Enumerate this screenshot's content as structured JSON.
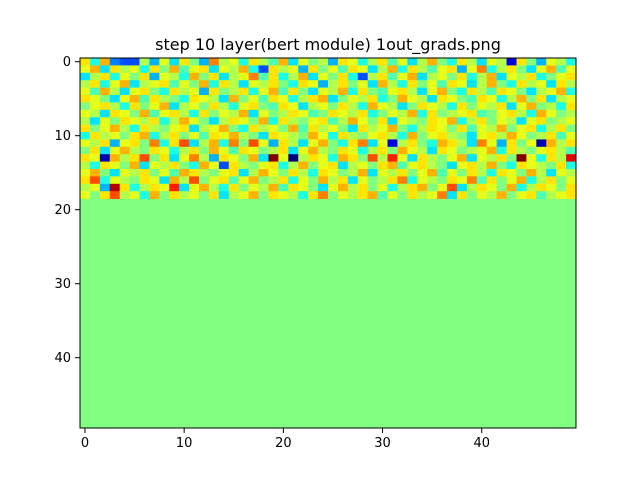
{
  "chart_data": {
    "type": "heatmap",
    "title": "step 10 layer(bert module) 1out_grads.png",
    "xlabel": "",
    "ylabel": "",
    "rows": 50,
    "cols": 50,
    "colormap": "jet",
    "value_range": [
      -1,
      1
    ],
    "xlim": [
      -0.5,
      49.5
    ],
    "ylim": [
      49.5,
      -0.5
    ],
    "x_ticks": [
      0,
      10,
      20,
      30,
      40
    ],
    "y_ticks": [
      0,
      10,
      20,
      30,
      40
    ],
    "active_rows": [
      0,
      18
    ],
    "inactive_value": 0,
    "values": [
      [
        0.3,
        -0.2,
        0.4,
        -0.5,
        -0.6,
        -0.6,
        0.1,
        -0.4,
        0.2,
        -0.3,
        0.3,
        0.0,
        -0.4,
        0.5,
        0.1,
        0.2,
        -0.2,
        0.3,
        0.1,
        -0.1,
        0.4,
        -0.3,
        0.2,
        0.0,
        0.1,
        -0.4,
        0.3,
        0.2,
        -0.2,
        0.1,
        0.3,
        -0.1,
        0.2,
        -0.3,
        0.1,
        0.4,
        0.0,
        -0.2,
        0.3,
        0.1,
        -0.3,
        0.2,
        0.1,
        -0.8,
        0.3,
        0.0,
        -0.4,
        0.2,
        0.1,
        -0.2
      ],
      [
        0.2,
        0.4,
        -0.3,
        0.3,
        0.1,
        0.2,
        -0.2,
        0.3,
        0.0,
        0.4,
        -0.1,
        0.2,
        0.3,
        -0.3,
        0.2,
        0.1,
        0.4,
        -0.2,
        -0.6,
        0.3,
        0.1,
        0.2,
        -0.4,
        0.3,
        0.0,
        0.2,
        -0.1,
        0.3,
        0.2,
        -0.3,
        0.1,
        0.4,
        -0.2,
        0.3,
        0.1,
        -0.1,
        0.2,
        0.3,
        -0.4,
        0.2,
        0.5,
        -0.2,
        0.1,
        0.3,
        0.0,
        -0.3,
        0.2,
        0.4,
        -0.1,
        0.2
      ],
      [
        -0.3,
        0.1,
        0.3,
        -0.2,
        0.2,
        0.0,
        0.3,
        -0.4,
        0.2,
        0.1,
        -0.2,
        0.4,
        0.0,
        0.3,
        -0.3,
        0.1,
        0.2,
        0.5,
        -0.1,
        0.3,
        -0.2,
        0.1,
        0.4,
        -0.3,
        0.2,
        0.0,
        0.3,
        -0.2,
        -0.6,
        0.1,
        0.3,
        -0.1,
        0.2,
        0.4,
        -0.3,
        0.1,
        0.2,
        0.0,
        0.3,
        -0.2,
        0.1,
        0.4,
        -0.3,
        0.2,
        0.1,
        0.3,
        -0.2,
        0.0,
        0.2,
        0.3
      ],
      [
        0.1,
        0.3,
        -0.2,
        0.2,
        0.4,
        -0.3,
        0.1,
        0.2,
        0.3,
        -0.1,
        0.2,
        0.0,
        0.4,
        -0.2,
        0.3,
        0.1,
        -0.3,
        0.2,
        0.1,
        0.3,
        0.0,
        -0.2,
        0.3,
        0.2,
        -0.4,
        0.1,
        0.3,
        0.0,
        0.2,
        -0.3,
        0.4,
        0.1,
        -0.2,
        0.3,
        0.0,
        0.2,
        -0.1,
        0.3,
        0.2,
        -0.3,
        0.1,
        0.4,
        0.0,
        -0.2,
        0.3,
        0.1,
        0.2,
        -0.3,
        0.3,
        0.1
      ],
      [
        0.2,
        -0.1,
        0.4,
        0.1,
        -0.3,
        0.2,
        0.3,
        0.0,
        -0.2,
        0.3,
        0.1,
        0.2,
        -0.4,
        0.3,
        0.0,
        0.1,
        0.3,
        -0.2,
        0.2,
        0.4,
        -0.1,
        0.3,
        0.0,
        -0.3,
        0.2,
        0.1,
        0.4,
        -0.2,
        0.3,
        0.0,
        -0.1,
        0.2,
        0.3,
        0.1,
        -0.3,
        0.2,
        0.4,
        0.0,
        -0.2,
        0.3,
        0.1,
        -0.1,
        0.3,
        0.2,
        0.0,
        -0.3,
        0.1,
        0.2,
        0.4,
        -0.2
      ],
      [
        0.3,
        0.2,
        0.0,
        -0.3,
        0.2,
        0.4,
        -0.1,
        0.3,
        0.1,
        0.0,
        -0.2,
        0.3,
        0.2,
        0.1,
        -0.3,
        0.4,
        0.0,
        0.2,
        -0.1,
        0.3,
        0.2,
        -0.2,
        0.1,
        0.3,
        0.4,
        -0.3,
        0.0,
        0.2,
        0.1,
        0.3,
        -0.2,
        0.0,
        0.4,
        0.2,
        0.1,
        -0.3,
        0.3,
        0.2,
        0.0,
        -0.1,
        0.3,
        0.2,
        -0.2,
        0.1,
        0.4,
        0.0,
        0.3,
        -0.3,
        0.1,
        0.2
      ],
      [
        0.0,
        0.2,
        0.3,
        0.1,
        -0.2,
        0.3,
        0.0,
        0.2,
        0.4,
        -0.3,
        0.1,
        0.2,
        0.0,
        0.3,
        0.1,
        -0.2,
        0.2,
        0.3,
        0.0,
        -0.1,
        0.3,
        0.2,
        -0.3,
        0.1,
        0.2,
        0.0,
        0.3,
        0.1,
        -0.2,
        0.4,
        0.2,
        0.1,
        -0.3,
        0.0,
        0.3,
        0.2,
        0.1,
        -0.2,
        0.3,
        0.0,
        0.2,
        0.1,
        0.3,
        -0.3,
        0.2,
        0.4,
        0.0,
        0.1,
        -0.2,
        0.3
      ],
      [
        0.2,
        0.1,
        -0.3,
        0.3,
        0.2,
        0.0,
        0.4,
        -0.1,
        0.2,
        0.3,
        0.1,
        -0.2,
        0.3,
        0.0,
        0.2,
        0.1,
        0.4,
        -0.3,
        0.2,
        0.0,
        0.1,
        0.3,
        0.2,
        -0.1,
        0.0,
        0.3,
        0.2,
        0.1,
        0.3,
        -0.2,
        0.0,
        0.2,
        0.1,
        0.4,
        -0.2,
        0.3,
        0.0,
        0.1,
        0.2,
        0.3,
        -0.1,
        0.0,
        0.2,
        0.3,
        0.1,
        -0.2,
        0.4,
        0.2,
        0.0,
        0.1
      ],
      [
        0.1,
        -0.3,
        0.2,
        0.0,
        0.3,
        0.2,
        0.1,
        0.3,
        -0.2,
        0.1,
        0.4,
        0.2,
        0.0,
        -0.3,
        0.1,
        0.3,
        0.2,
        0.0,
        0.4,
        -0.2,
        0.3,
        0.1,
        0.0,
        0.2,
        0.3,
        -0.1,
        0.1,
        0.4,
        0.2,
        0.0,
        0.3,
        -0.3,
        0.2,
        0.1,
        0.0,
        0.3,
        0.2,
        0.4,
        -0.2,
        0.1,
        0.3,
        0.0,
        0.2,
        0.1,
        -0.3,
        0.2,
        0.3,
        0.0,
        0.1,
        0.2
      ],
      [
        0.3,
        0.0,
        0.2,
        0.4,
        0.1,
        -0.2,
        0.3,
        0.1,
        0.0,
        0.2,
        0.3,
        -0.3,
        0.1,
        0.2,
        0.4,
        0.0,
        -0.2,
        0.3,
        0.1,
        0.2,
        0.0,
        0.4,
        -0.1,
        0.3,
        0.1,
        0.2,
        0.0,
        -0.3,
        0.3,
        0.1,
        0.2,
        0.4,
        0.0,
        -0.2,
        0.1,
        0.3,
        0.2,
        0.0,
        0.3,
        -0.1,
        0.2,
        0.1,
        0.4,
        0.0,
        0.2,
        0.3,
        -0.2,
        0.1,
        0.3,
        0.0
      ],
      [
        -0.2,
        0.3,
        0.1,
        0.2,
        0.0,
        0.3,
        0.4,
        -0.2,
        0.1,
        0.3,
        0.0,
        0.2,
        -0.1,
        0.3,
        0.2,
        0.4,
        0.1,
        0.0,
        -0.3,
        0.3,
        0.2,
        0.1,
        0.0,
        0.4,
        0.2,
        -0.2,
        0.3,
        0.1,
        0.0,
        0.2,
        0.3,
        0.1,
        -0.2,
        0.4,
        0.0,
        0.2,
        0.3,
        0.1,
        0.0,
        -0.3,
        0.2,
        0.3,
        0.1,
        0.4,
        0.2,
        0.0,
        0.1,
        0.3,
        -0.1,
        0.2
      ],
      [
        0.2,
        0.1,
        0.3,
        -0.4,
        0.2,
        0.3,
        0.0,
        0.5,
        -0.2,
        0.3,
        0.6,
        -0.3,
        0.1,
        0.4,
        -0.2,
        0.5,
        0.0,
        0.6,
        0.2,
        -0.4,
        0.3,
        0.1,
        -0.3,
        0.2,
        0.4,
        0.0,
        -0.2,
        0.3,
        0.5,
        -0.3,
        0.2,
        -0.8,
        0.1,
        0.3,
        0.0,
        -0.2,
        0.4,
        0.3,
        0.1,
        -0.3,
        0.5,
        0.2,
        -0.4,
        0.3,
        0.0,
        0.2,
        -0.9,
        0.4,
        0.1,
        0.3
      ],
      [
        0.0,
        0.3,
        -0.3,
        0.2,
        0.4,
        0.1,
        0.0,
        0.3,
        0.2,
        -0.2,
        0.1,
        0.3,
        0.0,
        0.4,
        0.2,
        -0.1,
        0.3,
        0.2,
        0.0,
        0.1,
        0.3,
        -0.3,
        0.2,
        0.4,
        0.1,
        0.0,
        0.3,
        0.2,
        -0.2,
        0.1,
        0.3,
        0.0,
        0.4,
        0.2,
        0.1,
        -0.3,
        0.3,
        0.2,
        0.0,
        0.1,
        0.2,
        0.4,
        -0.2,
        0.3,
        0.1,
        0.0,
        0.2,
        0.3,
        0.1,
        -0.1
      ],
      [
        0.3,
        0.2,
        -0.9,
        0.4,
        0.1,
        0.3,
        0.6,
        0.0,
        0.3,
        -0.3,
        0.2,
        0.5,
        0.1,
        -0.4,
        0.3,
        0.2,
        0.0,
        0.4,
        -0.3,
        1.0,
        0.2,
        -1.0,
        0.1,
        0.3,
        0.2,
        -0.2,
        0.4,
        0.3,
        0.0,
        0.6,
        0.1,
        0.7,
        0.2,
        -0.3,
        0.3,
        0.1,
        0.0,
        0.2,
        0.4,
        -0.3,
        0.2,
        0.1,
        0.3,
        0.0,
        1.0,
        0.2,
        -0.2,
        0.3,
        0.1,
        0.8
      ],
      [
        0.1,
        -0.2,
        0.3,
        0.2,
        0.0,
        0.4,
        -0.3,
        0.2,
        0.1,
        0.3,
        0.0,
        -0.2,
        0.4,
        0.2,
        -0.6,
        0.3,
        0.1,
        0.0,
        0.2,
        0.3,
        -0.2,
        0.1,
        0.4,
        0.0,
        0.2,
        0.3,
        -0.3,
        0.1,
        0.2,
        0.0,
        0.3,
        0.4,
        -0.1,
        0.2,
        0.3,
        0.1,
        0.0,
        -0.3,
        0.2,
        0.3,
        0.1,
        0.4,
        0.0,
        -0.2,
        0.3,
        0.2,
        0.1,
        0.0,
        0.3,
        -0.2
      ],
      [
        0.2,
        0.4,
        0.0,
        -0.3,
        0.2,
        0.1,
        0.3,
        0.0,
        0.2,
        -0.1,
        0.4,
        0.3,
        0.1,
        0.0,
        0.2,
        0.3,
        -0.3,
        0.1,
        0.4,
        0.2,
        0.0,
        0.3,
        0.1,
        -0.2,
        0.3,
        0.2,
        0.0,
        0.1,
        0.4,
        -0.3,
        0.2,
        0.1,
        0.3,
        0.0,
        0.2,
        0.4,
        -0.1,
        0.2,
        0.0,
        0.3,
        0.1,
        -0.2,
        0.3,
        0.2,
        0.0,
        0.4,
        0.1,
        -0.3,
        0.2,
        0.1
      ],
      [
        0.3,
        0.6,
        -0.2,
        0.2,
        0.1,
        0.0,
        0.3,
        0.2,
        -0.3,
        0.4,
        0.1,
        0.6,
        0.0,
        0.2,
        0.3,
        -0.1,
        0.2,
        0.4,
        0.0,
        0.1,
        0.3,
        -0.2,
        0.2,
        0.0,
        0.4,
        0.1,
        0.3,
        -0.3,
        0.2,
        0.0,
        0.1,
        0.3,
        0.5,
        -0.2,
        0.2,
        0.1,
        0.0,
        0.3,
        0.2,
        0.5,
        -0.1,
        0.3,
        0.0,
        0.2,
        0.4,
        -0.2,
        0.1,
        0.3,
        0.0,
        0.2
      ],
      [
        0.1,
        0.2,
        -0.4,
        0.9,
        0.3,
        -0.2,
        0.1,
        0.3,
        0.2,
        0.7,
        -0.3,
        0.2,
        0.4,
        0.1,
        -0.2,
        0.3,
        0.0,
        0.2,
        0.1,
        0.4,
        -0.1,
        0.3,
        0.2,
        0.0,
        -0.3,
        0.2,
        0.4,
        0.1,
        0.3,
        0.0,
        0.2,
        -0.2,
        0.1,
        0.3,
        0.4,
        0.0,
        0.2,
        0.6,
        -0.3,
        0.1,
        0.3,
        0.2,
        0.0,
        0.4,
        -0.2,
        0.1,
        0.3,
        0.2,
        0.0,
        0.3
      ],
      [
        0.2,
        0.0,
        0.3,
        0.6,
        0.1,
        0.2,
        -0.2,
        0.4,
        0.0,
        0.3,
        0.1,
        0.2,
        0.0,
        0.3,
        -0.3,
        0.1,
        0.2,
        0.4,
        0.0,
        0.3,
        0.2,
        0.1,
        -0.2,
        0.3,
        0.5,
        0.0,
        0.2,
        0.1,
        0.3,
        0.4,
        -0.1,
        0.2,
        0.0,
        0.3,
        0.1,
        0.2,
        0.5,
        -0.3,
        0.3,
        0.0,
        0.2,
        0.1,
        0.4,
        0.0,
        0.2,
        0.3,
        -0.1,
        0.1,
        0.2,
        0.3
      ]
    ]
  }
}
